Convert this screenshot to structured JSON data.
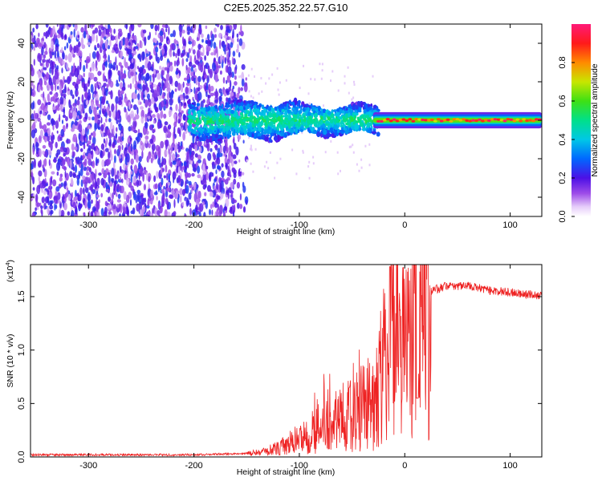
{
  "title": "C2E5.2025.352.22.57.G10",
  "chart_data": [
    {
      "type": "heatmap",
      "panel": "top",
      "xlabel": "Height of straight line (km)",
      "ylabel": "Frequency (Hz)",
      "xlim": [
        -355,
        130
      ],
      "ylim": [
        -50,
        50
      ],
      "x_ticks": [
        -300,
        -200,
        -100,
        0,
        100
      ],
      "x_tick_labels": [
        "-300",
        "-200",
        "-100",
        "0",
        "100"
      ],
      "y_ticks": [
        -40,
        -20,
        0,
        20,
        40
      ],
      "y_tick_labels": [
        "-40",
        "-20",
        "0",
        "20",
        "40"
      ],
      "colorbar": {
        "label": "Normalized spectral amplitude",
        "range": [
          0,
          1
        ],
        "ticks": [
          0.0,
          0.2,
          0.4,
          0.6,
          0.8
        ],
        "tick_labels": [
          "0.0",
          "0.2",
          "0.4",
          "0.6",
          "0.8"
        ]
      },
      "regions": [
        {
          "x_range": [
            -355,
            -155
          ],
          "freq_range": [
            -50,
            50
          ],
          "description": "broadband noise, amplitude ~0.1-0.25"
        },
        {
          "x_range": [
            -205,
            -30
          ],
          "freq_range": [
            -12,
            12
          ],
          "description": "signal band, amplitude ~0.2-0.5"
        },
        {
          "x_range": [
            -30,
            130
          ],
          "freq_range": [
            -4,
            4
          ],
          "description": "narrow carrier, amplitude ~0.5-1.0"
        }
      ],
      "colors": {
        "low": "#8a2be2",
        "high": "#ff1a40"
      }
    },
    {
      "type": "line",
      "panel": "bottom",
      "xlabel": "Height of straight line (km)",
      "ylabel": "SNR (10 * v/v)",
      "y_multiplier_base": "(x10",
      "y_multiplier_exp": "4",
      "y_multiplier_close": ")",
      "xlim": [
        -355,
        130
      ],
      "ylim": [
        0,
        1.8
      ],
      "x_ticks": [
        -300,
        -200,
        -100,
        0,
        100
      ],
      "x_tick_labels": [
        "-300",
        "-200",
        "-100",
        "0",
        "100"
      ],
      "y_ticks": [
        0.0,
        0.5,
        1.0,
        1.5
      ],
      "y_tick_labels": [
        "0.0",
        "0.5",
        "1.0",
        "1.5"
      ],
      "series": [
        {
          "name": "SNR",
          "color": "#ee2222",
          "x": [
            -355,
            -300,
            -250,
            -200,
            -160,
            -140,
            -120,
            -110,
            -100,
            -90,
            -80,
            -70,
            -60,
            -50,
            -40,
            -30,
            -25,
            -20,
            -15,
            -10,
            -5,
            0,
            5,
            10,
            15,
            20,
            25,
            30,
            40,
            50,
            60,
            70,
            80,
            90,
            100,
            110,
            120,
            130
          ],
          "y": [
            0.02,
            0.02,
            0.02,
            0.02,
            0.03,
            0.04,
            0.08,
            0.12,
            0.18,
            0.22,
            0.28,
            0.3,
            0.36,
            0.4,
            0.45,
            0.55,
            0.7,
            0.85,
            1.0,
            1.1,
            1.2,
            1.05,
            1.1,
            1.25,
            1.4,
            1.5,
            1.55,
            1.57,
            1.6,
            1.6,
            1.6,
            1.58,
            1.56,
            1.55,
            1.54,
            1.53,
            1.52,
            1.51
          ]
        }
      ]
    }
  ]
}
